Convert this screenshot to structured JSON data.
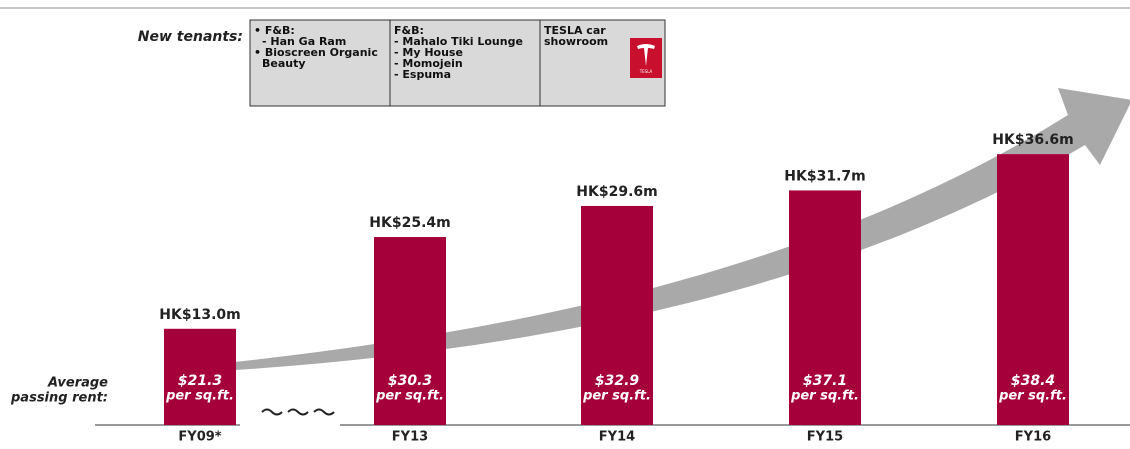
{
  "chart_data": {
    "type": "bar",
    "categories": [
      "FY09*",
      "FY13",
      "FY14",
      "FY15",
      "FY16"
    ],
    "values": [
      13.0,
      25.4,
      29.6,
      31.7,
      36.6
    ],
    "value_labels": [
      "HK$13.0m",
      "HK$25.4m",
      "HK$29.6m",
      "HK$31.7m",
      "HK$36.6m"
    ],
    "color": "#a6003a",
    "rent_title": [
      "Average",
      "passing rent:"
    ],
    "rents": [
      "$21.3",
      "$30.3",
      "$32.9",
      "$37.1",
      "$38.4"
    ],
    "rent_unit": "per sq.ft.",
    "tenants": {
      "title": "New tenants:",
      "cells": [
        [
          "• F&B:",
          "- Han Ga Ram",
          "• Bioscreen Organic",
          "Beauty"
        ],
        [
          "F&B:",
          "- Mahalo Tiki Lounge",
          "- My House",
          "- Momojein",
          "- Espuma"
        ],
        [
          "TESLA car",
          "showroom"
        ]
      ],
      "logo_text": "TESLA"
    }
  }
}
